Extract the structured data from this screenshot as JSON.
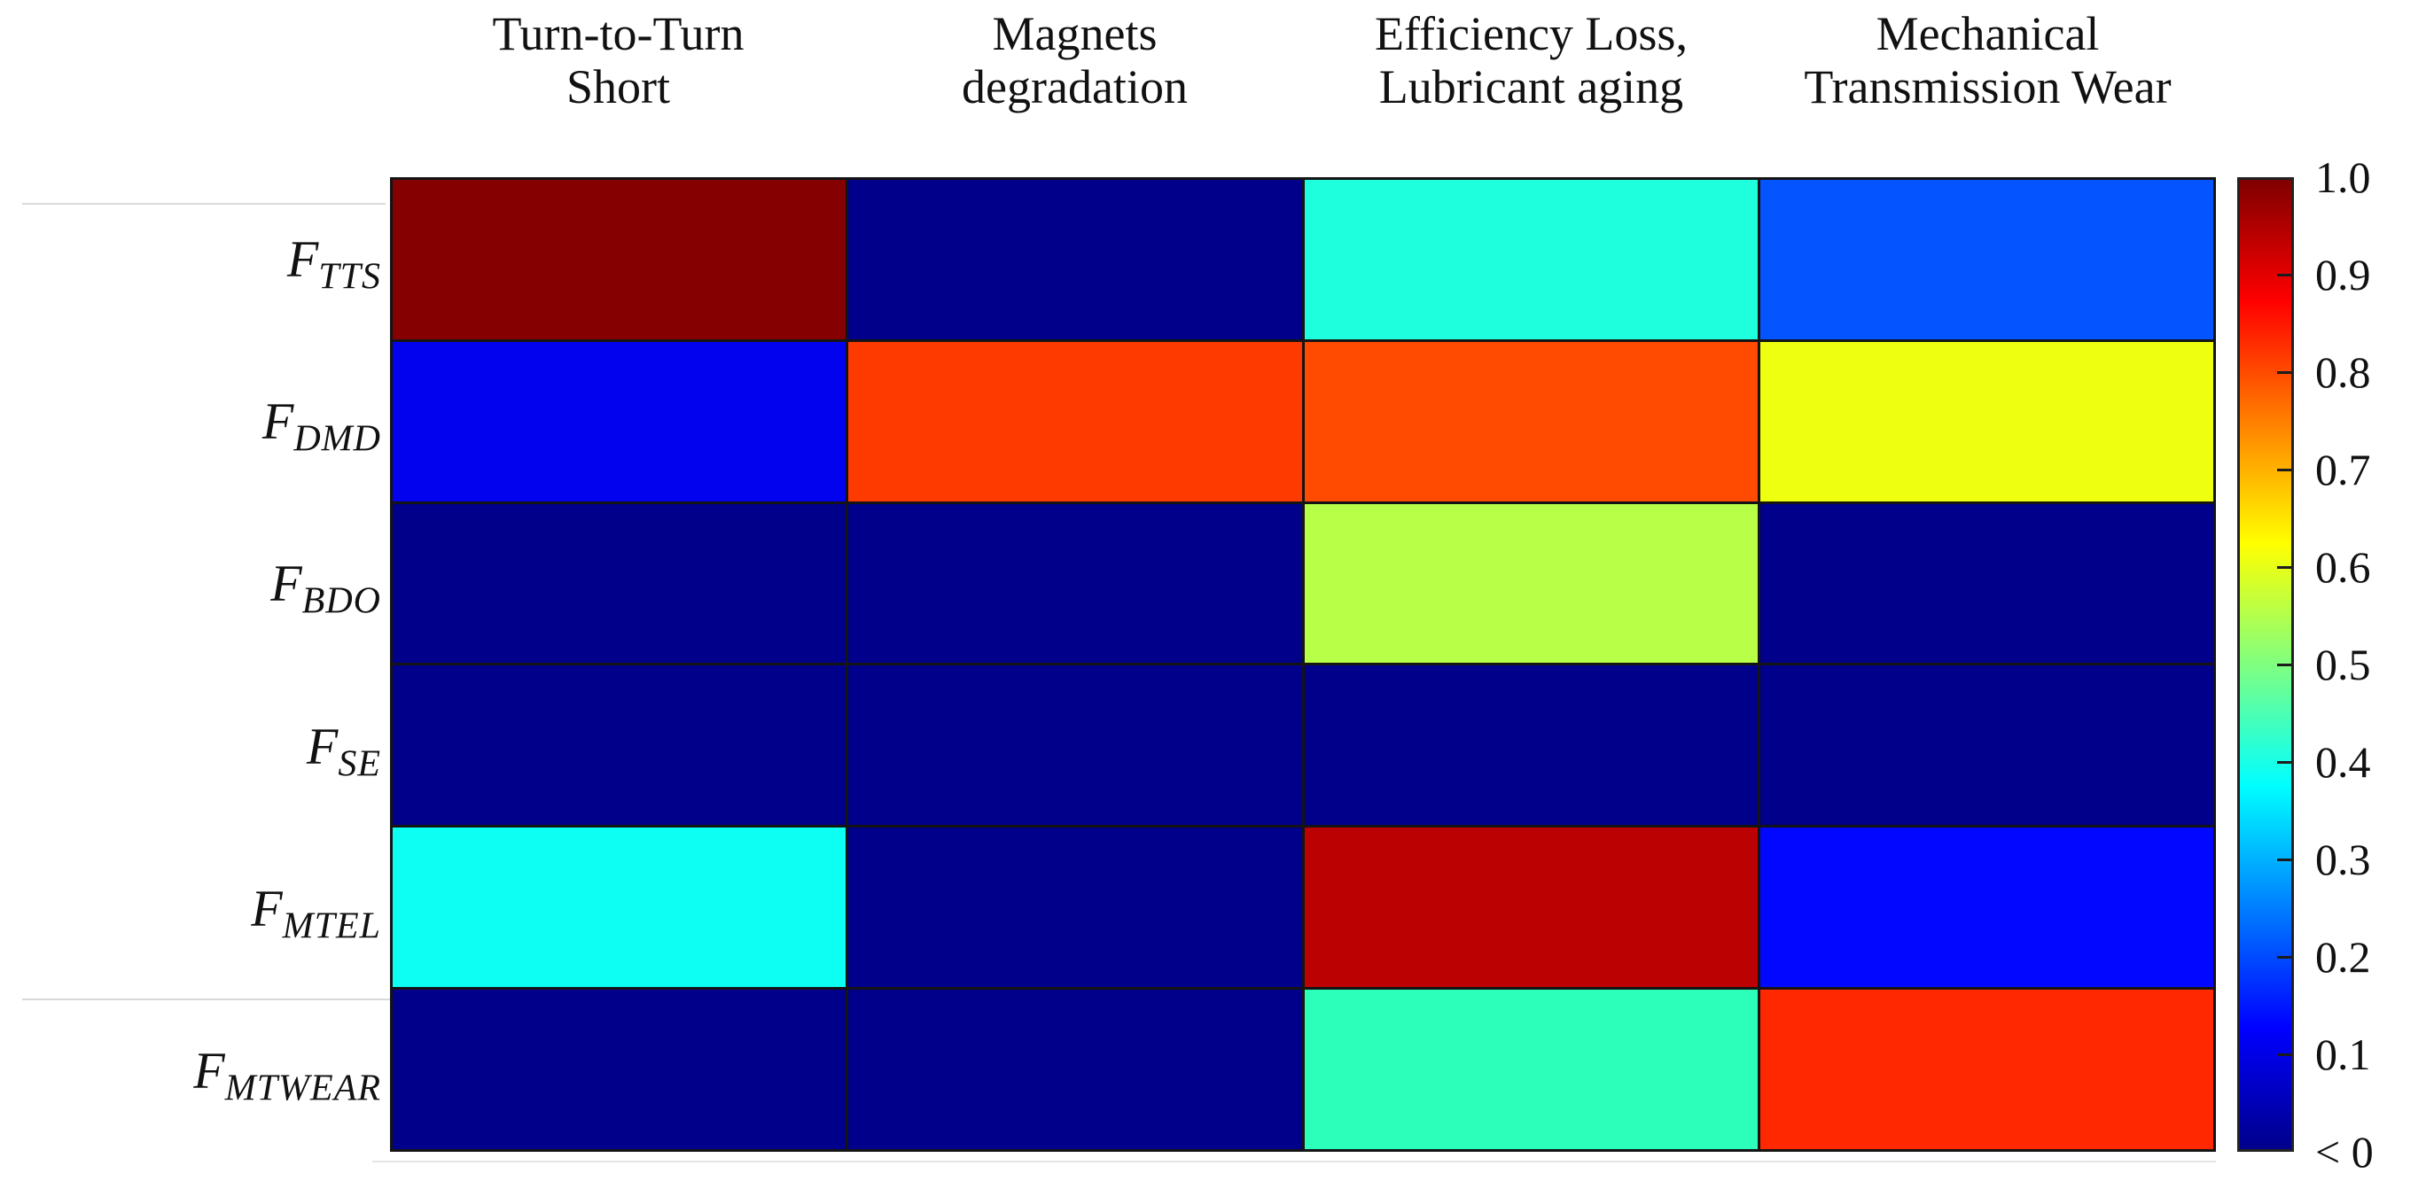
{
  "figure": {
    "background": "#ffffff",
    "grid_line_color": "#141414",
    "navy_floor_color": "#00008B"
  },
  "chart_data": {
    "type": "heatmap",
    "title": "",
    "columns": [
      {
        "line1": "Turn-to-Turn",
        "line2": "Short"
      },
      {
        "line1": "Magnets",
        "line2": "degradation"
      },
      {
        "line1": "Efficiency Loss,",
        "line2": "Lubricant aging"
      },
      {
        "line1": "Mechanical",
        "line2": "Transmission Wear"
      }
    ],
    "rows": [
      {
        "main": "F",
        "sub": "TTS",
        "values": [
          1.0,
          "< 0",
          0.42,
          0.22
        ],
        "colors": [
          "#850101",
          "#00008B",
          "#1EFFDE",
          "#0455FF"
        ]
      },
      {
        "main": "F",
        "sub": "DMD",
        "values": [
          0.11,
          0.82,
          0.8,
          0.61
        ],
        "colors": [
          "#0202EE",
          "#FF3A01",
          "#FF4A02",
          "#EFFF10"
        ]
      },
      {
        "main": "F",
        "sub": "BDO",
        "values": [
          "< 0",
          "< 0",
          0.55,
          "< 0"
        ],
        "colors": [
          "#00008B",
          "#00008B",
          "#B8FF47",
          "#00008B"
        ]
      },
      {
        "main": "F",
        "sub": "SE",
        "values": [
          "< 0",
          "< 0",
          "< 0",
          "< 0"
        ],
        "colors": [
          "#00008B",
          "#00008B",
          "#00008B",
          "#00008B"
        ]
      },
      {
        "main": "F",
        "sub": "MTEL",
        "values": [
          0.4,
          "< 0",
          0.93,
          0.11
        ],
        "colors": [
          "#0CFFF2",
          "#00008B",
          "#BB0101",
          "#0208FF"
        ]
      },
      {
        "main": "F",
        "sub": "MTWEAR",
        "values": [
          "< 0",
          "< 0",
          0.45,
          0.84
        ],
        "colors": [
          "#00008B",
          "#00008B",
          "#2BFFB9",
          "#FF2801"
        ]
      }
    ],
    "colorbar": {
      "tick_labels": [
        "1.0",
        "0.9",
        "0.8",
        "0.7",
        "0.6",
        "0.5",
        "0.4",
        "0.3",
        "0.2",
        "0.1",
        "< 0"
      ],
      "gradient_stops_top_to_bottom": [
        {
          "pos": 0,
          "color": "#7F0000"
        },
        {
          "pos": 12.5,
          "color": "#FF0000"
        },
        {
          "pos": 37.5,
          "color": "#FFFF00"
        },
        {
          "pos": 50,
          "color": "#80FF80"
        },
        {
          "pos": 62.5,
          "color": "#00FFFF"
        },
        {
          "pos": 87.5,
          "color": "#0000FF"
        },
        {
          "pos": 100,
          "color": "#00008B"
        }
      ],
      "range_top": 1.0,
      "range_bottom_label": "< 0"
    },
    "legend_position": "right",
    "axis_ranges": {
      "columns": 4,
      "rows": 6
    }
  }
}
